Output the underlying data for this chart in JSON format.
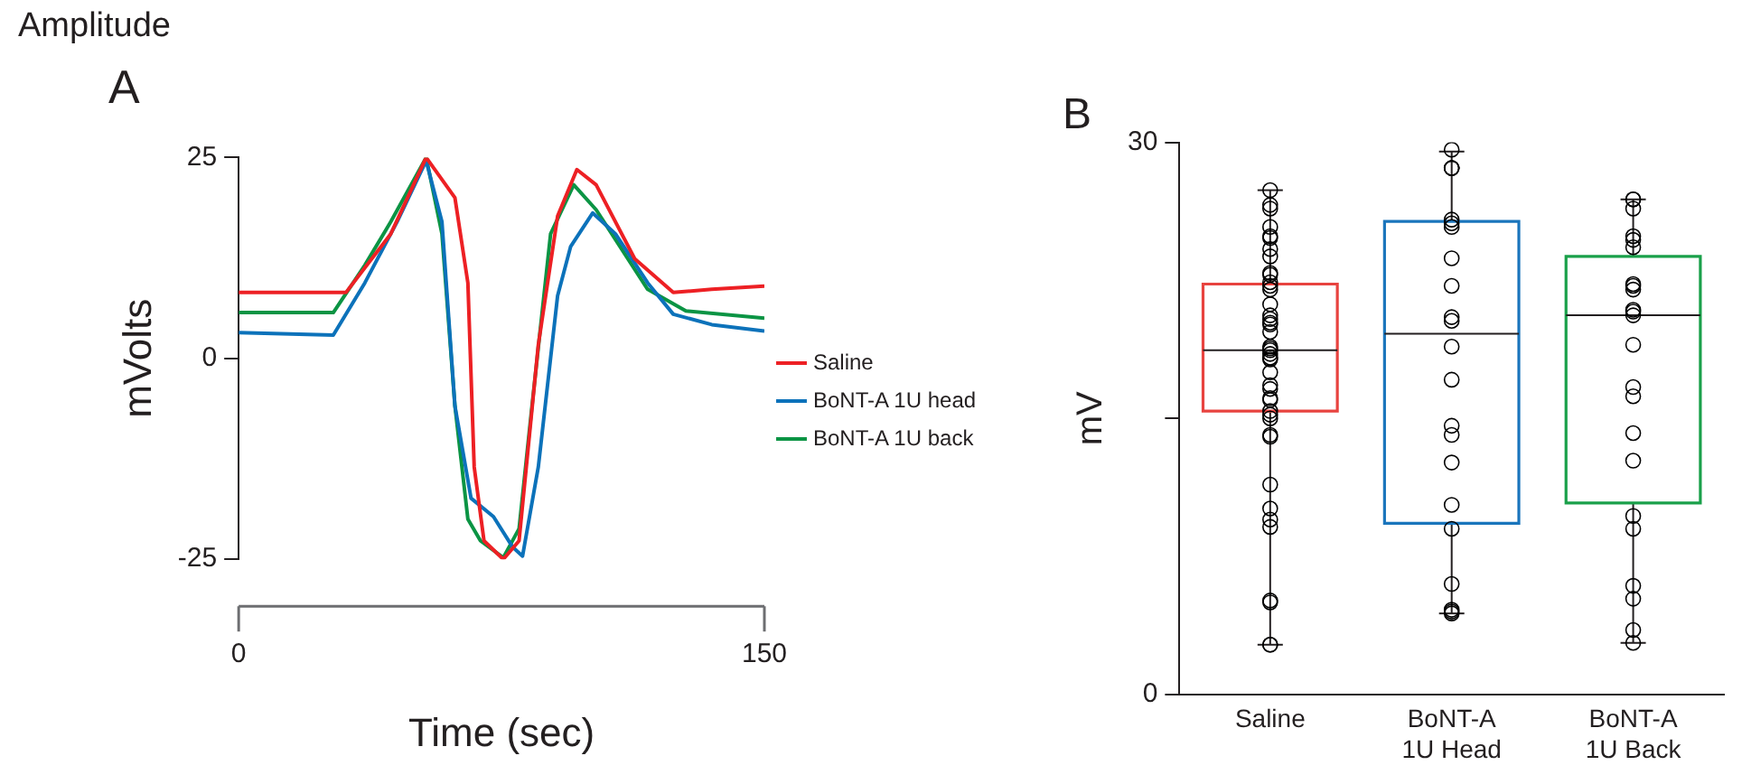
{
  "chart_data": [
    {
      "type": "line",
      "title": "A",
      "annotations": [
        "Amplitude"
      ],
      "xlabel": "Time (sec)",
      "ylabel": "mVolts",
      "xlim": [
        0,
        150
      ],
      "xticks": [
        0,
        150
      ],
      "ylim": [
        -25,
        25
      ],
      "yticks": [
        -25,
        0,
        25
      ],
      "legend": "right",
      "grid": false,
      "marker": "none",
      "line_style": "solid",
      "series": [
        {
          "name": "Saline",
          "color": "#ed2024",
          "x": [
            0,
            30.6,
            43.4,
            53.5,
            61.7,
            65.4,
            67.2,
            70,
            75.5,
            80,
            85.5,
            91,
            96.5,
            102,
            113,
            124,
            135,
            150
          ],
          "values": [
            8.2,
            8.2,
            15.5,
            25,
            20,
            9.4,
            -13.5,
            -22.7,
            -25,
            -22.7,
            1.7,
            17.7,
            23.5,
            21.6,
            12.4,
            8.2,
            8.6,
            9
          ]
        },
        {
          "name": "BoNT-A 1U head",
          "color": "#0c72ba",
          "x": [
            0,
            27,
            36,
            45.2,
            53.5,
            58,
            61.7,
            66.3,
            72.7,
            78.2,
            81,
            85.5,
            91,
            94.7,
            101,
            107.5,
            116.7,
            124,
            135,
            150
          ],
          "values": [
            3.2,
            2.9,
            9.4,
            17,
            24.6,
            17,
            -5.9,
            -17.4,
            -19.7,
            -23.5,
            -24.6,
            -13.5,
            7.8,
            13.9,
            18.1,
            15.5,
            9.4,
            5.5,
            4.2,
            3.4
          ]
        },
        {
          "name": "BoNT-A 1U back",
          "color": "#0b9444",
          "x": [
            0,
            27,
            36,
            43.4,
            53.5,
            58,
            61.7,
            65.4,
            69,
            75.5,
            80,
            83.7,
            89,
            95.6,
            102,
            116.7,
            127.6,
            150
          ],
          "values": [
            5.7,
            5.7,
            11.6,
            17,
            25,
            15.5,
            -5.9,
            -20,
            -22.7,
            -24.8,
            -21.2,
            -5.9,
            15.5,
            21.6,
            18.5,
            8.6,
            5.9,
            5
          ]
        }
      ]
    },
    {
      "type": "box",
      "title": "B",
      "ylabel": "mV",
      "categories": [
        "Saline",
        "BoNT-A\n1U Head",
        "BoNT-A\n1U Back"
      ],
      "colors": [
        "#e8433f",
        "#1a75bc",
        "#1aa04a"
      ],
      "boxes": [
        {
          "low": 2.7,
          "q1": 15.4,
          "median": 18.7,
          "q3": 22.3,
          "high": 27.4
        },
        {
          "low": 4.4,
          "q1": 9.3,
          "median": 19.6,
          "q3": 25.7,
          "high": 29.5
        },
        {
          "low": 2.8,
          "q1": 10.4,
          "median": 20.6,
          "q3": 23.8,
          "high": 26.9
        }
      ],
      "ylim": [
        0,
        30
      ],
      "yticks": [
        0,
        {
          "value": 15,
          "label": null
        },
        30
      ],
      "grid": false,
      "legend": false,
      "marker": "circle",
      "series": [
        {
          "type": "scatter",
          "color": "#000000",
          "x": [
            "Saline",
            "Saline",
            "Saline",
            "Saline",
            "Saline",
            "Saline",
            "Saline",
            "Saline",
            "Saline",
            "Saline",
            "Saline",
            "Saline",
            "Saline",
            "Saline",
            "Saline",
            "Saline",
            "Saline",
            "Saline",
            "Saline",
            "Saline",
            "Saline",
            "Saline",
            "Saline",
            "Saline",
            "Saline",
            "Saline",
            "Saline",
            "Saline",
            "Saline",
            "Saline",
            "Saline",
            "Saline",
            "Saline",
            "Saline",
            "Saline",
            "Saline",
            "Saline",
            "Saline",
            "Saline",
            "Saline",
            "Saline",
            "Saline",
            "Saline"
          ],
          "values": [
            27.4,
            26.6,
            26.4,
            25.4,
            24.9,
            24.8,
            24.2,
            23.8,
            22.9,
            22.8,
            22.4,
            22.2,
            22.0,
            21.2,
            20.6,
            20.4,
            20.2,
            20.1,
            19.7,
            18.9,
            18.8,
            18.7,
            18.5,
            18.3,
            18.2,
            17.5,
            16.8,
            16.6,
            16.1,
            16.0,
            15.4,
            15.2,
            15.0,
            14.1,
            14.0,
            11.4,
            10.1,
            9.5,
            9.1,
            5.1,
            5.0,
            2.7,
            2.7
          ]
        },
        {
          "type": "scatter",
          "color": "#000000",
          "x": [
            "BoNT-A\n1U Head",
            "BoNT-A\n1U Head",
            "BoNT-A\n1U Head",
            "BoNT-A\n1U Head",
            "BoNT-A\n1U Head",
            "BoNT-A\n1U Head",
            "BoNT-A\n1U Head",
            "BoNT-A\n1U Head",
            "BoNT-A\n1U Head",
            "BoNT-A\n1U Head",
            "BoNT-A\n1U Head",
            "BoNT-A\n1U Head",
            "BoNT-A\n1U Head",
            "BoNT-A\n1U Head",
            "BoNT-A\n1U Head",
            "BoNT-A\n1U Head",
            "BoNT-A\n1U Head",
            "BoNT-A\n1U Head",
            "BoNT-A\n1U Head",
            "BoNT-A\n1U Head",
            "BoNT-A\n1U Head",
            "BoNT-A\n1U Head"
          ],
          "values": [
            29.6,
            28.6,
            28.6,
            28.6,
            25.8,
            25.6,
            25.4,
            23.7,
            22.2,
            20.5,
            20.3,
            18.9,
            17.1,
            14.6,
            14.1,
            12.6,
            10.3,
            9.0,
            6.0,
            4.6,
            4.5,
            4.4
          ]
        },
        {
          "type": "scatter",
          "color": "#000000",
          "x": [
            "BoNT-A\n1U Back",
            "BoNT-A\n1U Back",
            "BoNT-A\n1U Back",
            "BoNT-A\n1U Back",
            "BoNT-A\n1U Back",
            "BoNT-A\n1U Back",
            "BoNT-A\n1U Back",
            "BoNT-A\n1U Back",
            "BoNT-A\n1U Back",
            "BoNT-A\n1U Back",
            "BoNT-A\n1U Back",
            "BoNT-A\n1U Back",
            "BoNT-A\n1U Back",
            "BoNT-A\n1U Back",
            "BoNT-A\n1U Back",
            "BoNT-A\n1U Back",
            "BoNT-A\n1U Back",
            "BoNT-A\n1U Back",
            "BoNT-A\n1U Back",
            "BoNT-A\n1U Back",
            "BoNT-A\n1U Back",
            "BoNT-A\n1U Back",
            "BoNT-A\n1U Back"
          ],
          "values": [
            26.9,
            26.9,
            26.4,
            24.9,
            24.7,
            24.3,
            22.3,
            22.2,
            22.0,
            20.9,
            20.8,
            20.6,
            19.0,
            16.7,
            16.2,
            14.2,
            12.7,
            9.7,
            9.0,
            5.9,
            5.2,
            3.5,
            2.8
          ]
        }
      ]
    }
  ]
}
